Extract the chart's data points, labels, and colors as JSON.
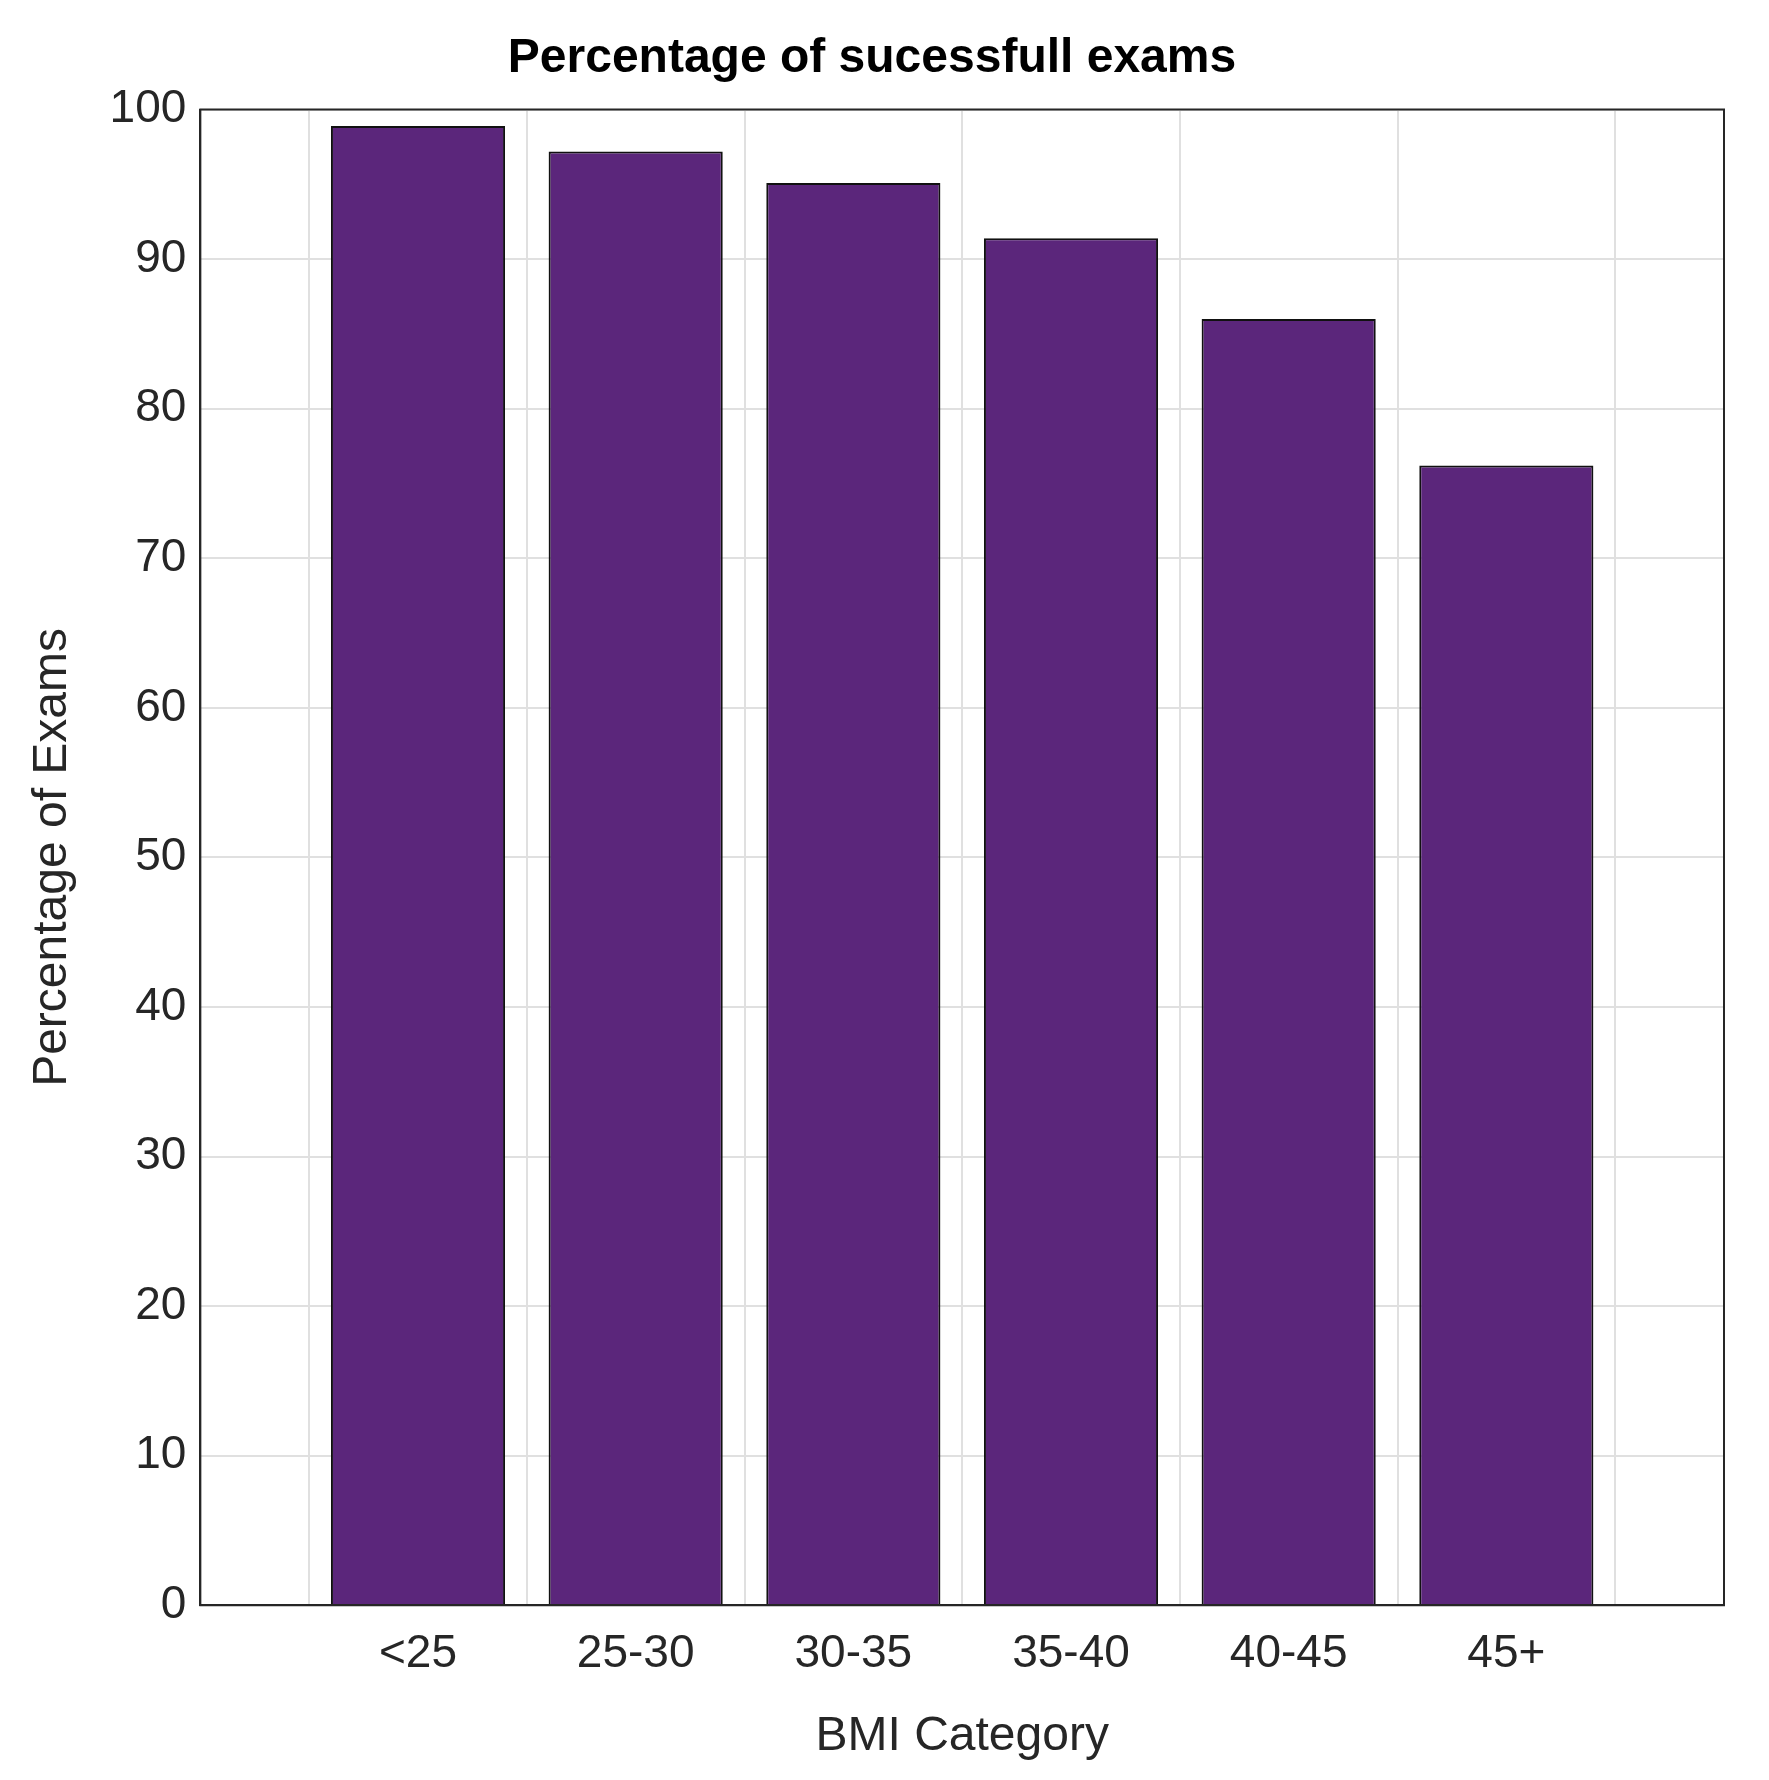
{
  "chart_data": {
    "type": "bar",
    "title": "Percentage of sucessfull exams",
    "xlabel": "BMI Category",
    "ylabel": "Percentage of Exams",
    "categories": [
      "<25",
      "25-30",
      "30-35",
      "35-40",
      "40-45",
      "45+"
    ],
    "values": [
      98.9,
      97.2,
      95.1,
      91.4,
      86.0,
      76.2
    ],
    "color": "#5b267b",
    "ylim": [
      0,
      100
    ],
    "yticks": [
      0,
      10,
      20,
      30,
      40,
      50,
      60,
      70,
      80,
      90,
      100
    ],
    "grid": true,
    "legend": false
  }
}
